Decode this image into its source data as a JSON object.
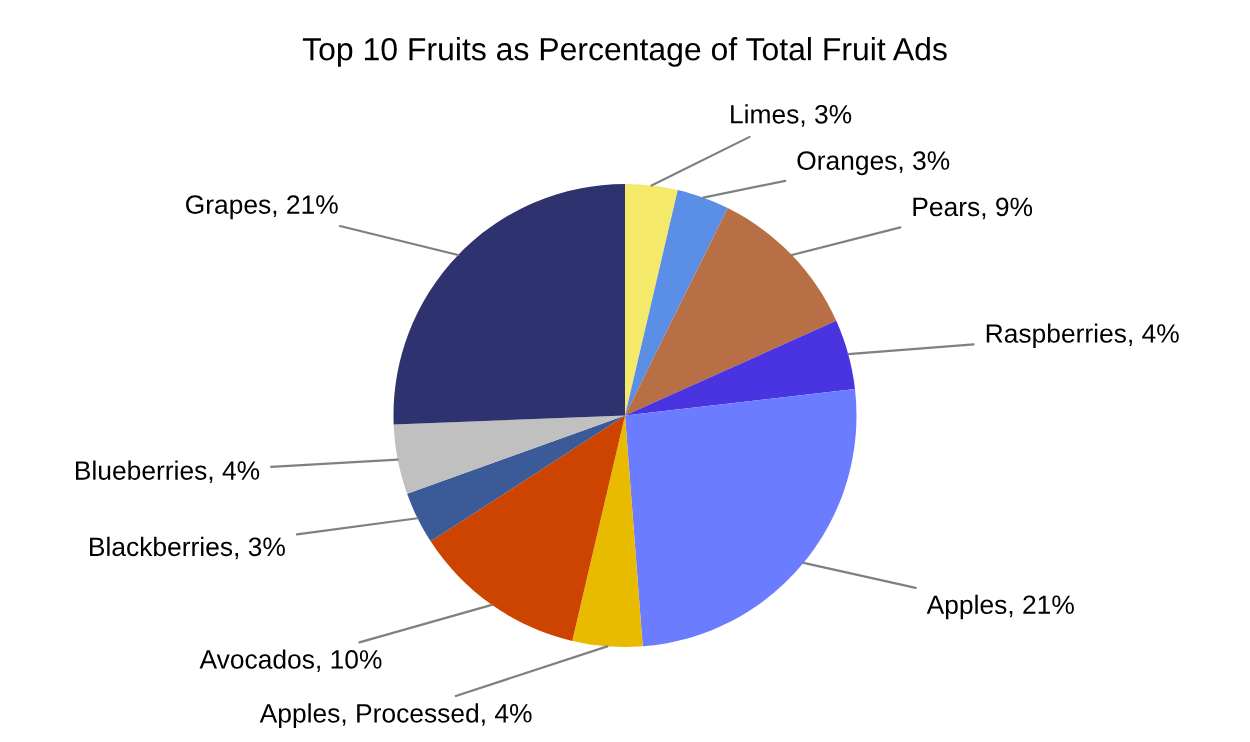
{
  "chart_data": {
    "type": "pie",
    "title": "Top 10 Fruits as Percentage of Total Fruit Ads",
    "categories": [
      "Limes",
      "Oranges",
      "Pears",
      "Raspberries",
      "Apples",
      "Apples, Processed",
      "Avocados",
      "Blackberries",
      "Blueberries",
      "Grapes"
    ],
    "values": [
      3,
      3,
      9,
      4,
      21,
      4,
      10,
      3,
      4,
      21
    ],
    "value_labels": [
      "3%",
      "3%",
      "9%",
      "4%",
      "21%",
      "4%",
      "10%",
      "3%",
      "4%",
      "21%"
    ],
    "colors": [
      "#f5e96a",
      "#5b8fe6",
      "#b86f45",
      "#4a33e0",
      "#6b7cff",
      "#e9bb00",
      "#cc4400",
      "#3a5a98",
      "#c0c0c0",
      "#2e3370"
    ]
  }
}
